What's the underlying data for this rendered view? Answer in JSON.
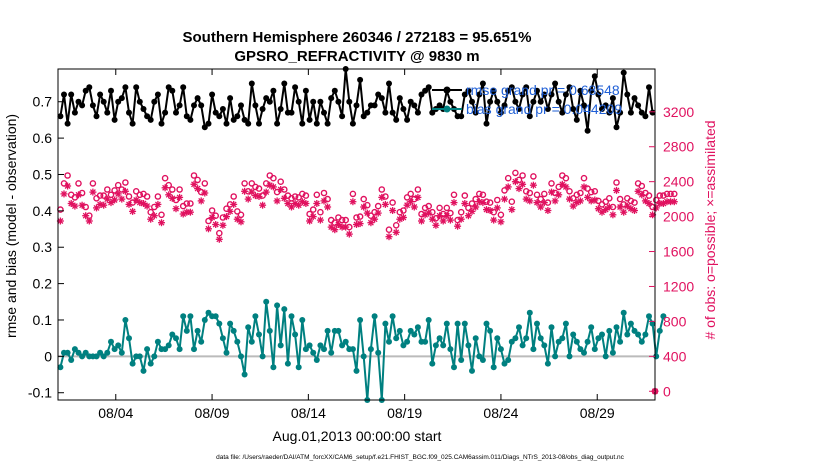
{
  "chart_data": {
    "type": "line",
    "title_line1": "Southern Hemisphere 260346 / 272183 = 95.651%",
    "title_line2": "GPSRO_REFRACTIVITY @ 9830 m",
    "xlabel": "Aug.01,2013 00:00:00 start",
    "ylabel_left": "rmse and bias (model - observation)",
    "ylabel_right": "# of obs: o=possible; ×=assimilated",
    "footer": "data file: /Users/raeder/DAI/ATM_forcXX/CAM6_setup/f.e21.FHIST_BGC.f09_025.CAM6assim.011/Diags_NTrS_2013-08/obs_diag_output.nc",
    "xlim": [
      1.0,
      32.0
    ],
    "ylim_left": [
      -0.12,
      0.79
    ],
    "ylim_right": [
      -100,
      3690
    ],
    "x_ticks": [
      4,
      9,
      14,
      19,
      24,
      29
    ],
    "x_tick_labels": [
      "08/04",
      "08/09",
      "08/14",
      "08/19",
      "08/24",
      "08/29"
    ],
    "y_ticks_left": [
      -0.1,
      0,
      0.1,
      0.2,
      0.3,
      0.4,
      0.5,
      0.6,
      0.7
    ],
    "y_tick_labels_left": [
      "-0.1",
      "0",
      "0.1",
      "0.2",
      "0.3",
      "0.4",
      "0.5",
      "0.6",
      "0.7"
    ],
    "y_ticks_right": [
      0,
      400,
      800,
      1200,
      1600,
      2000,
      2400,
      2800,
      3200
    ],
    "y_tick_labels_right": [
      "0",
      "400",
      "800",
      "1200",
      "1600",
      "2000",
      "2400",
      "2800",
      "3200"
    ],
    "legend": {
      "placement": "top-right",
      "entries": [
        "rmse grand pr = 0.68548",
        "bias grand pr = 0.044209"
      ]
    },
    "colors": {
      "rmse": "#000000",
      "bias": "#008080",
      "obs": "#e0115f",
      "zero_line": "#bbbbbb",
      "legend_text": "#1f5fd6"
    },
    "series": [
      {
        "name": "rmse",
        "axis": "left",
        "style": "line-dot",
        "values": [
          0.66,
          0.72,
          0.64,
          0.72,
          0.67,
          0.7,
          0.69,
          0.73,
          0.74,
          0.69,
          0.66,
          0.72,
          0.7,
          0.67,
          0.73,
          0.65,
          0.7,
          0.71,
          0.74,
          0.67,
          0.64,
          0.74,
          0.7,
          0.68,
          0.66,
          0.65,
          0.7,
          0.72,
          0.64,
          0.67,
          0.74,
          0.73,
          0.67,
          0.69,
          0.74,
          0.66,
          0.65,
          0.69,
          0.71,
          0.69,
          0.63,
          0.64,
          0.72,
          0.67,
          0.66,
          0.68,
          0.64,
          0.71,
          0.65,
          0.66,
          0.69,
          0.65,
          0.64,
          0.75,
          0.69,
          0.64,
          0.68,
          0.71,
          0.7,
          0.73,
          0.64,
          0.68,
          0.75,
          0.67,
          0.67,
          0.74,
          0.7,
          0.64,
          0.73,
          0.65,
          0.7,
          0.64,
          0.7,
          0.67,
          0.64,
          0.71,
          0.73,
          0.7,
          0.66,
          0.79,
          0.7,
          0.64,
          0.69,
          0.76,
          0.66,
          0.67,
          0.69,
          0.69,
          0.72,
          0.71,
          0.67,
          0.75,
          0.67,
          0.65,
          0.71,
          0.68,
          0.65,
          0.7,
          0.69,
          0.67,
          0.72,
          0.73,
          0.74,
          0.67,
          0.68,
          0.69,
          0.68,
          0.73,
          0.7,
          0.68,
          0.66,
          0.66,
          0.72,
          0.73,
          0.7,
          0.67,
          0.72,
          0.75,
          0.64,
          0.7,
          0.73,
          0.7,
          0.67,
          0.69,
          0.73,
          0.74,
          0.7,
          0.68,
          0.72,
          0.74,
          0.66,
          0.7,
          0.73,
          0.7,
          0.72,
          0.68,
          0.72,
          0.75,
          0.7,
          0.67,
          0.72,
          0.74,
          0.68,
          0.65,
          0.73,
          0.69,
          0.62,
          0.73,
          0.77,
          0.72,
          0.68,
          0.69,
          0.67,
          0.71,
          0.63,
          0.67,
          0.78,
          0.72,
          0.67,
          0.71,
          0.69,
          0.67,
          0.66,
          0.74,
          0.67
        ]
      },
      {
        "name": "bias",
        "axis": "left",
        "style": "line-dot",
        "values": [
          -0.03,
          0.01,
          0.01,
          -0.01,
          0.02,
          0.01,
          0.0,
          0.01,
          0.0,
          0.0,
          0.0,
          0.01,
          0.0,
          0.01,
          0.04,
          0.02,
          0.03,
          0.01,
          0.1,
          0.05,
          -0.02,
          0.0,
          0.0,
          -0.04,
          0.02,
          -0.02,
          0.0,
          0.04,
          0.02,
          0.02,
          0.03,
          0.06,
          0.05,
          0.02,
          0.11,
          0.07,
          0.11,
          0.02,
          0.07,
          0.04,
          0.1,
          0.12,
          0.11,
          0.11,
          0.09,
          0.05,
          0.01,
          0.09,
          0.07,
          0.04,
          0.0,
          -0.05,
          0.08,
          0.04,
          0.11,
          0.06,
          0.0,
          0.15,
          0.07,
          -0.03,
          0.14,
          0.03,
          0.13,
          -0.02,
          0.11,
          0.06,
          -0.03,
          0.1,
          0.02,
          0.03,
          0.01,
          -0.01,
          0.03,
          0.02,
          0.07,
          0.01,
          0.07,
          0.07,
          0.03,
          0.04,
          0.02,
          0.02,
          -0.04,
          0.1,
          0.0,
          -0.12,
          0.02,
          0.11,
          0.01,
          -0.12,
          0.09,
          0.04,
          0.11,
          0.05,
          0.07,
          0.03,
          0.04,
          0.07,
          0.06,
          0.08,
          0.04,
          0.04,
          0.1,
          -0.02,
          0.03,
          0.05,
          0.03,
          0.09,
          0.02,
          -0.03,
          0.09,
          -0.01,
          0.09,
          0.03,
          -0.04,
          0.05,
          0.0,
          -0.01,
          0.09,
          0.07,
          -0.03,
          0.05,
          0.02,
          -0.02,
          -0.01,
          0.04,
          0.05,
          0.08,
          0.03,
          0.05,
          0.12,
          0.02,
          0.09,
          0.05,
          0.03,
          -0.02,
          0.08,
          0.0,
          0.04,
          0.05,
          0.09,
          0.0,
          0.06,
          0.04,
          0.02,
          0.01,
          0.04,
          0.08,
          0.02,
          0.05,
          0.06,
          0.0,
          0.07,
          0.01,
          0.08,
          0.04,
          0.12,
          0.06,
          0.09,
          0.07,
          0.06,
          0.04,
          0.06,
          0.11,
          0.09,
          0.0,
          0.07,
          0.11
        ]
      },
      {
        "name": "obs possible",
        "axis": "right",
        "style": "circle",
        "values": [
          2080,
          2380,
          2470,
          2250,
          2220,
          2380,
          2270,
          2110,
          2010,
          2380,
          2210,
          2240,
          2240,
          2310,
          2250,
          2300,
          2360,
          2310,
          2390,
          2230,
          2160,
          2290,
          2250,
          2260,
          2230,
          2050,
          2110,
          2230,
          2020,
          2440,
          2360,
          2310,
          2190,
          2310,
          2120,
          2150,
          2150,
          2470,
          2420,
          2280,
          2380,
          1950,
          2070,
          2010,
          1810,
          1990,
          2090,
          2140,
          2230,
          2060,
          2020,
          2380,
          2290,
          2380,
          2340,
          2320,
          2240,
          2380,
          2470,
          2440,
          2280,
          2400,
          2310,
          2240,
          2210,
          2230,
          2220,
          2260,
          2240,
          2030,
          2080,
          2250,
          2050,
          2270,
          2200,
          1960,
          1930,
          1990,
          1960,
          1960,
          1880,
          2260,
          1990,
          2000,
          2200,
          2130,
          2010,
          2050,
          2120,
          2310,
          2230,
          1850,
          2160,
          1900,
          2050,
          2070,
          2220,
          2260,
          2200,
          2310,
          2030,
          2100,
          2120,
          2050,
          1980,
          2100,
          2030,
          2100,
          2040,
          2250,
          1960,
          2050,
          2240,
          2100,
          2150,
          2200,
          2260,
          2250,
          2170,
          2160,
          2050,
          2190,
          2020,
          2300,
          2440,
          2170,
          2500,
          2420,
          2470,
          2290,
          2270,
          2460,
          2250,
          2200,
          2260,
          2160,
          2380,
          2270,
          2340,
          2470,
          2440,
          2290,
          2210,
          2250,
          2270,
          2440,
          2320,
          2280,
          2290,
          2180,
          2140,
          2170,
          2210,
          2110,
          2390,
          2200,
          2140,
          2210,
          2180,
          2160,
          2380,
          2350,
          2270,
          2240,
          2110,
          2190,
          2240,
          2240,
          2260,
          2260,
          2260
        ]
      },
      {
        "name": "obs assimilated",
        "axis": "right",
        "style": "asterisk",
        "values": [
          1950,
          2260,
          2350,
          2150,
          2120,
          2250,
          2130,
          2010,
          1950,
          2280,
          2100,
          2140,
          2130,
          2200,
          2160,
          2190,
          2260,
          2200,
          2290,
          2140,
          2060,
          2190,
          2160,
          2150,
          2120,
          1970,
          2010,
          2140,
          1930,
          2330,
          2250,
          2210,
          2090,
          2220,
          2030,
          2050,
          2050,
          2370,
          2320,
          2180,
          2270,
          1860,
          1990,
          1910,
          1740,
          1900,
          2000,
          2060,
          2140,
          1970,
          1940,
          2290,
          2200,
          2280,
          2240,
          2230,
          2130,
          2280,
          2360,
          2340,
          2180,
          2310,
          2210,
          2150,
          2110,
          2150,
          2130,
          2170,
          2150,
          1950,
          2000,
          2150,
          1960,
          2180,
          2110,
          1880,
          1850,
          1910,
          1880,
          1880,
          1800,
          2170,
          1910,
          1920,
          2110,
          2040,
          1930,
          1970,
          2040,
          2220,
          2140,
          1770,
          2070,
          1820,
          1970,
          1990,
          2130,
          2170,
          2110,
          2220,
          1950,
          2020,
          2040,
          1970,
          1900,
          2010,
          1950,
          2010,
          1960,
          2160,
          1890,
          1970,
          2150,
          2010,
          2060,
          2110,
          2170,
          2160,
          2080,
          2070,
          1960,
          2100,
          1940,
          2200,
          2340,
          2080,
          2400,
          2320,
          2370,
          2200,
          2180,
          2360,
          2160,
          2110,
          2160,
          2070,
          2280,
          2180,
          2250,
          2370,
          2340,
          2200,
          2120,
          2160,
          2180,
          2340,
          2220,
          2180,
          2190,
          2090,
          2050,
          2080,
          2110,
          2020,
          2300,
          2110,
          2050,
          2120,
          2090,
          2070,
          2290,
          2250,
          2180,
          2150,
          2020,
          2100,
          2150,
          2150,
          2170,
          2170,
          2170
        ]
      }
    ],
    "series_start_x": 1.125,
    "series_step_x": 0.1875,
    "extra_markers": [
      {
        "series": "obs possible",
        "x": 32.0,
        "y": 0
      }
    ]
  }
}
